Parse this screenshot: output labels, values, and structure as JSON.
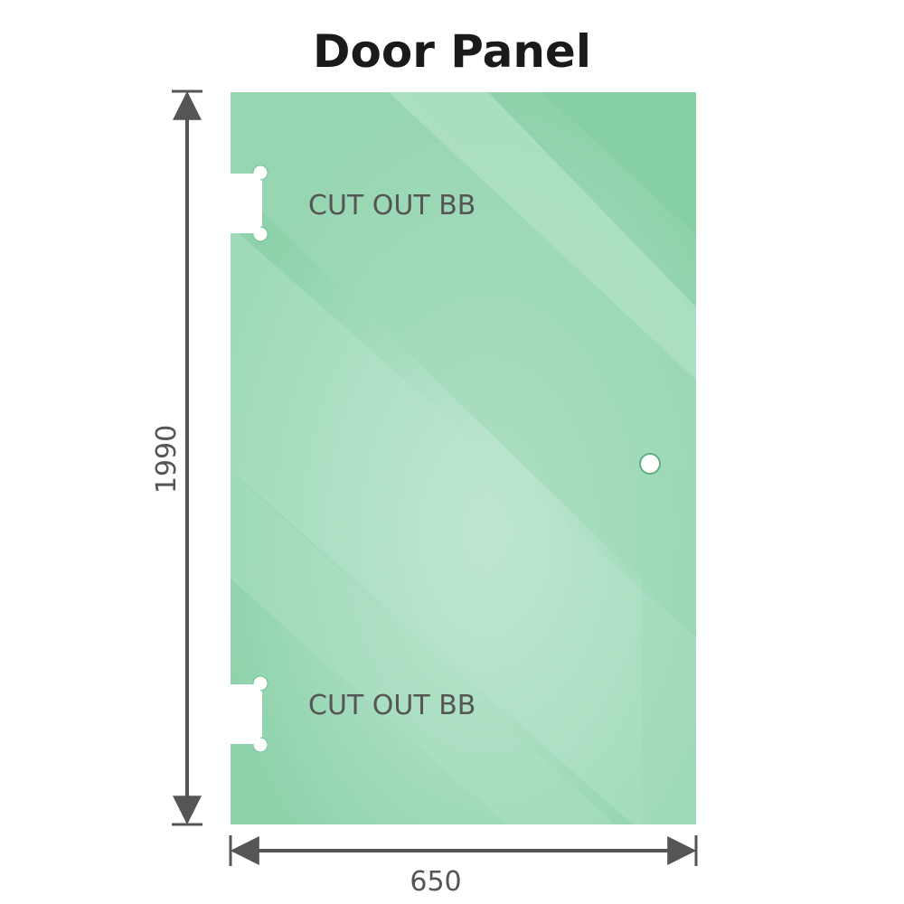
{
  "title": "Door Panel",
  "panel": {
    "cutout_top_label": "CUT OUT BB",
    "cutout_bottom_label": "CUT OUT BB",
    "glass_color": "#86cfa6",
    "highlight_color": "#bfe6d2"
  },
  "dimensions": {
    "height": "1990",
    "width": "650",
    "line_color": "#555555"
  }
}
